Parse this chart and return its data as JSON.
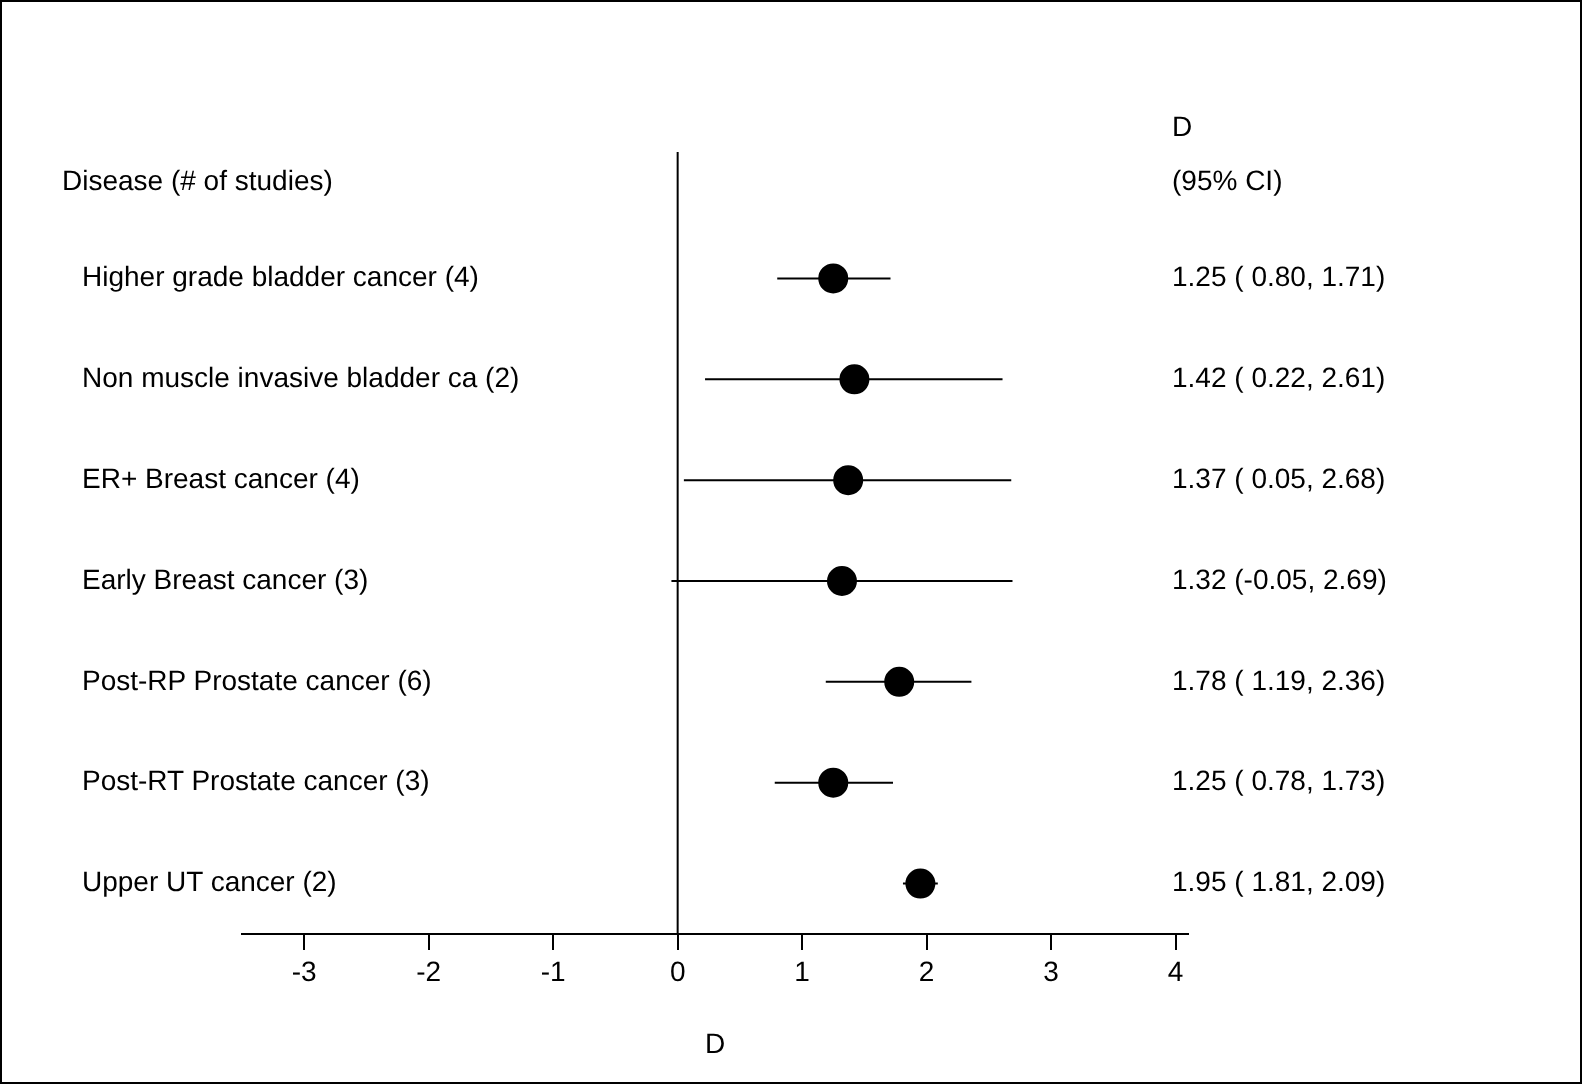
{
  "chart_data": {
    "type": "scatter",
    "orientation": "horizontal",
    "xlabel": "D",
    "categories": [
      "Higher grade bladder cancer (4)",
      "Non muscle invasive bladder ca (2)",
      "ER+ Breast cancer (4)",
      "Early Breast cancer (3)",
      "Post-RP Prostate cancer (6)",
      "Post-RT Prostate cancer (3)",
      "Upper UT cancer (2)"
    ],
    "values": [
      1.25,
      1.42,
      1.37,
      1.32,
      1.78,
      1.25,
      1.95
    ],
    "errors": [
      [
        0.8,
        1.71
      ],
      [
        0.22,
        2.61
      ],
      [
        0.05,
        2.68
      ],
      [
        -0.05,
        2.69
      ],
      [
        1.19,
        2.36
      ],
      [
        0.78,
        1.73
      ],
      [
        1.81,
        2.09
      ]
    ],
    "value_labels": [
      "1.25 ( 0.80, 1.71)",
      "1.42 ( 0.22, 2.61)",
      "1.37 ( 0.05, 2.68)",
      "1.32 (-0.05, 2.69)",
      "1.78 ( 1.19, 2.36)",
      "1.25 ( 0.78, 1.73)",
      "1.95 ( 1.81, 2.09)"
    ],
    "color": "#000000",
    "marker": "circle",
    "line_style": "solid",
    "xlim": [
      -3.5,
      4.1
    ],
    "xticks": [
      -3,
      -2,
      -1,
      0,
      1,
      2,
      3,
      4
    ],
    "ref_lines": [
      {
        "axis": "x",
        "value": 0
      }
    ],
    "annotations": [
      "Disease (# of studies)",
      "D",
      "(95% CI)"
    ],
    "grid": false,
    "legend": false
  }
}
